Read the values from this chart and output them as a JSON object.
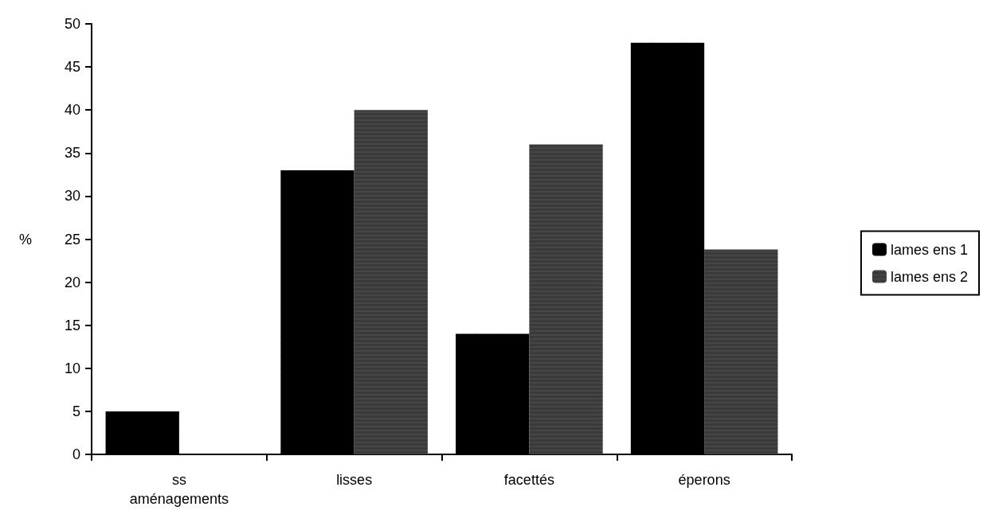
{
  "chart_data": {
    "type": "bar",
    "ylabel": "%",
    "categories": [
      "ss\naménagements",
      "lisses",
      "facettés",
      "éperons"
    ],
    "series": [
      {
        "name": "lames ens 1",
        "color": "#000000",
        "values": [
          5,
          33,
          14,
          47.8
        ]
      },
      {
        "name": "lames ens 2",
        "color": "#3a3a3a",
        "values": [
          0,
          40,
          36,
          23.8
        ]
      }
    ],
    "ylim": [
      0,
      50
    ],
    "yticks": [
      0,
      5,
      10,
      15,
      20,
      25,
      30,
      35,
      40,
      45,
      50
    ],
    "grid": false,
    "legend": "right"
  }
}
